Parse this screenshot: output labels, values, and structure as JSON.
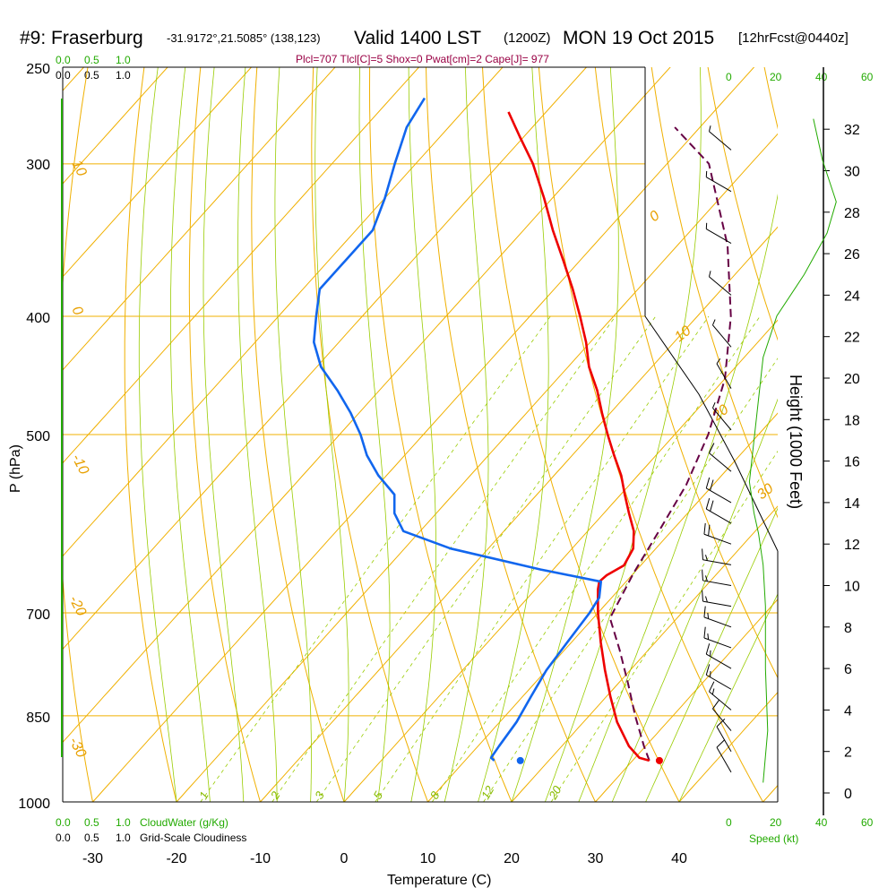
{
  "header": {
    "station": "#9: Fraserburg",
    "coords": "-31.9172°,21.5085° (138,123)",
    "valid": "Valid 1400 LST",
    "zulu": "(1200Z)",
    "date": "MON 19 Oct 2015",
    "forecast": "[12hrFcst@0440z]"
  },
  "params_line": "Plcl=707 Tlcl[C]=5 Shox=0 Pwat[cm]=2 Cape[J]= 977",
  "cloud_scales": {
    "top_green": [
      "0.0",
      "0.5",
      "1.0"
    ],
    "top_black": [
      "0.0",
      "0.5",
      "1.0"
    ],
    "bottom_green": [
      "0.0",
      "0.5",
      "1.0"
    ],
    "bottom_black": [
      "0.0",
      "0.5",
      "1.0"
    ],
    "cloudwater_label": "CloudWater (g/Kg)",
    "cloudiness_label": "Grid-Scale Cloudiness"
  },
  "speed_axis": {
    "top_ticks": [
      "0",
      "20",
      "40",
      "60"
    ],
    "bottom_ticks": [
      "0",
      "20",
      "40",
      "60"
    ],
    "label": "Speed (kt)"
  },
  "colors": {
    "isobar": "#f0b000",
    "isotherm": "#f0b000",
    "dry_adiabat": "#f0b000",
    "moist_adiabat": "#99cc00",
    "mixing_ratio": "#99cc00",
    "temperature": "#ee0000",
    "dewpoint": "#1166ee",
    "parcel": "#660044",
    "speed": "#22aa00",
    "barb": "#000000"
  },
  "chart_data": {
    "type": "line",
    "subtype": "skew-t log-p sounding",
    "xlabel": "Temperature (C)",
    "ylabel": "P (hPa)",
    "y2label": "Height (1000 Feet)",
    "x_ticks": [
      -30,
      -20,
      -10,
      0,
      10,
      20,
      30,
      40
    ],
    "xlim": [
      -34,
      36
    ],
    "p_ticks": [
      250,
      300,
      400,
      500,
      700,
      850,
      1000
    ],
    "ylim": [
      1000,
      250
    ],
    "y_scale": "log",
    "height_ticks_kft": [
      0,
      2,
      4,
      6,
      8,
      10,
      12,
      14,
      16,
      18,
      20,
      22,
      24,
      26,
      28,
      30,
      32
    ],
    "temperature": {
      "p": [
        925,
        920,
        900,
        860,
        820,
        780,
        740,
        700,
        670,
        660,
        652,
        640,
        620,
        600,
        580,
        560,
        540,
        520,
        500,
        480,
        460,
        440,
        420,
        400,
        380,
        360,
        340,
        320,
        300,
        285,
        272
      ],
      "t": [
        32.0,
        30.5,
        28.0,
        24.0,
        20.5,
        17.0,
        13.5,
        10.0,
        7.5,
        6.8,
        7.0,
        8.0,
        7.3,
        5.5,
        3.0,
        0.5,
        -2.0,
        -5.0,
        -8.0,
        -11.0,
        -14.0,
        -17.5,
        -20.5,
        -24.0,
        -27.8,
        -32.0,
        -36.5,
        -41.0,
        -46.0,
        -50.5,
        -54.5
      ]
    },
    "dewpoint": {
      "p": [
        925,
        920,
        900,
        860,
        820,
        780,
        740,
        700,
        680,
        660,
        645,
        620,
        600,
        580,
        560,
        540,
        520,
        500,
        480,
        460,
        440,
        420,
        400,
        380,
        360,
        340,
        320,
        300,
        280,
        265
      ],
      "t": [
        13.5,
        12.8,
        12.5,
        12.0,
        11.0,
        10.0,
        9.5,
        9.0,
        8.5,
        7.0,
        -1.5,
        -14.5,
        -22.0,
        -25.0,
        -27.0,
        -31.0,
        -34.5,
        -37.5,
        -41.0,
        -45.0,
        -49.5,
        -53.0,
        -55.5,
        -58.0,
        -58.0,
        -58.0,
        -60.0,
        -62.5,
        -65.0,
        -66.0
      ]
    },
    "parcel": {
      "p": [
        925,
        900,
        850,
        800,
        750,
        707,
        650,
        600,
        550,
        500,
        450,
        400,
        350,
        300,
        280
      ],
      "t": [
        32.0,
        29.8,
        25.5,
        21.2,
        16.5,
        12.0,
        10.0,
        8.5,
        6.8,
        4.0,
        0.0,
        -6.0,
        -14.0,
        -25.0,
        -33.0
      ]
    },
    "surface_temperature": {
      "p": 925,
      "t": 33.2
    },
    "surface_dewpoint": {
      "p": 925,
      "t": 16.6
    },
    "isotherm_labels": [
      "10",
      "0",
      "-10",
      "-20",
      "-30",
      "0",
      "10",
      "20",
      "30"
    ],
    "mixing_ratio_labels": [
      "1",
      "2",
      "3",
      "5",
      "8",
      "12",
      "20"
    ],
    "mixing_ratio_values": [
      1,
      2,
      3,
      5,
      8,
      12,
      20
    ],
    "wind_profile": {
      "height_kft": [
        1.0,
        2.0,
        3.0,
        4.0,
        5.0,
        6.0,
        7.0,
        8.0,
        9.0,
        10.0,
        11.0,
        12.0,
        13.0,
        14.0,
        15.5,
        17.5,
        19.5,
        21.5,
        24.0,
        26.5,
        29.0,
        31.0
      ],
      "speed_kt": [
        10,
        12,
        14,
        15,
        15,
        15,
        15,
        15,
        16,
        17,
        18,
        20,
        22,
        20,
        12,
        8,
        6,
        5,
        6,
        7,
        8,
        6
      ],
      "direction_deg": [
        330,
        330,
        320,
        310,
        300,
        300,
        290,
        290,
        280,
        280,
        280,
        290,
        300,
        300,
        310,
        320,
        330,
        320,
        310,
        300,
        300,
        310
      ]
    },
    "speed_profile": {
      "height_kft": [
        0.5,
        3,
        6,
        9,
        11,
        12.5,
        13.5,
        15,
        17,
        19,
        21,
        23,
        25,
        27,
        28.5,
        30.5,
        32.5
      ],
      "speed_kt": [
        14,
        16,
        15,
        15,
        14,
        12,
        10,
        8,
        10,
        12,
        14,
        20,
        32,
        42,
        46,
        40,
        36
      ]
    }
  }
}
